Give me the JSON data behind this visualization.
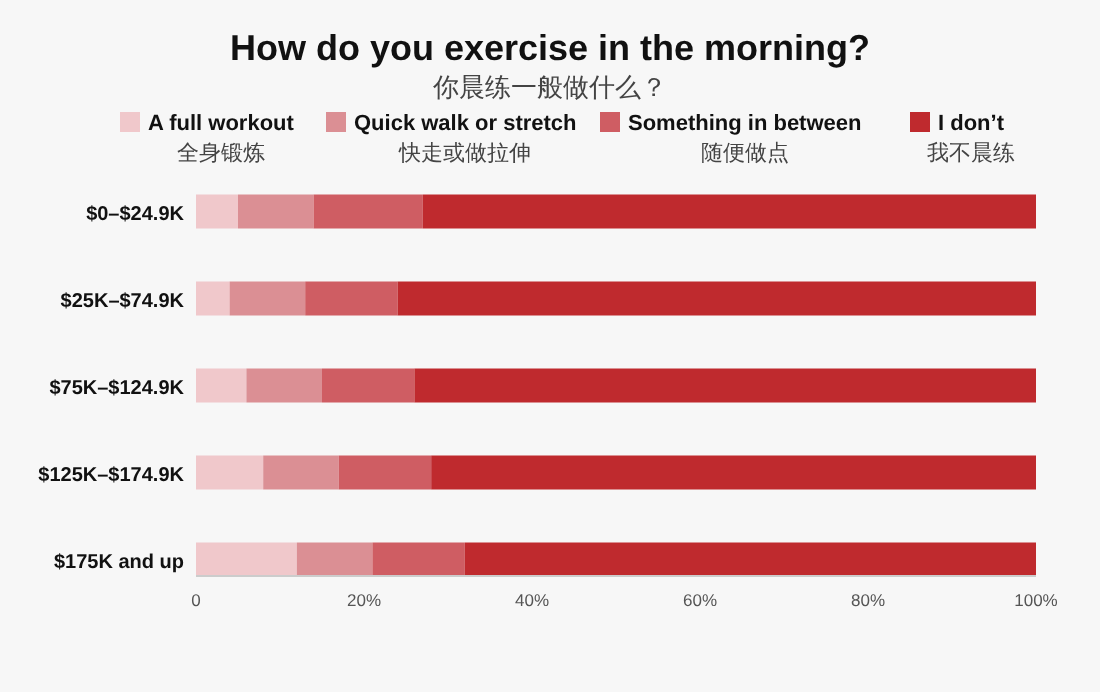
{
  "chart_data": {
    "type": "bar",
    "orientation": "horizontal",
    "stacked": true,
    "title": "How do you exercise in the morning?",
    "subtitle": "你晨练一般做什么？",
    "categories": [
      "$0–$24.9K",
      "$25K–$74.9K",
      "$75K–$124.9K",
      "$125K–$174.9K",
      "$175K and up"
    ],
    "series": [
      {
        "name": "A full workout\n全身锻炼",
        "color": "#f0c8cb",
        "values": [
          5,
          4,
          6,
          8,
          12
        ]
      },
      {
        "name": "Quick walk or stretch\n快走或做拉伸",
        "color": "#db8f94",
        "values": [
          9,
          9,
          9,
          9,
          9
        ]
      },
      {
        "name": "Something in between\n随便做点",
        "color": "#cf5d63",
        "values": [
          13,
          11,
          11,
          11,
          11
        ]
      },
      {
        "name": "I don’t\n我不晨练",
        "color": "#bf2a2e",
        "values": [
          73,
          76,
          74,
          72,
          68
        ]
      }
    ],
    "xlim": [
      0,
      100
    ],
    "xticks": [
      0,
      {
        "value": 20,
        "label": "20%"
      },
      {
        "value": 40,
        "label": "40%"
      },
      {
        "value": 60,
        "label": "60%"
      },
      {
        "value": 80,
        "label": "80%"
      },
      {
        "value": 100,
        "label": "100%"
      }
    ],
    "grid": false,
    "legend": "top"
  }
}
